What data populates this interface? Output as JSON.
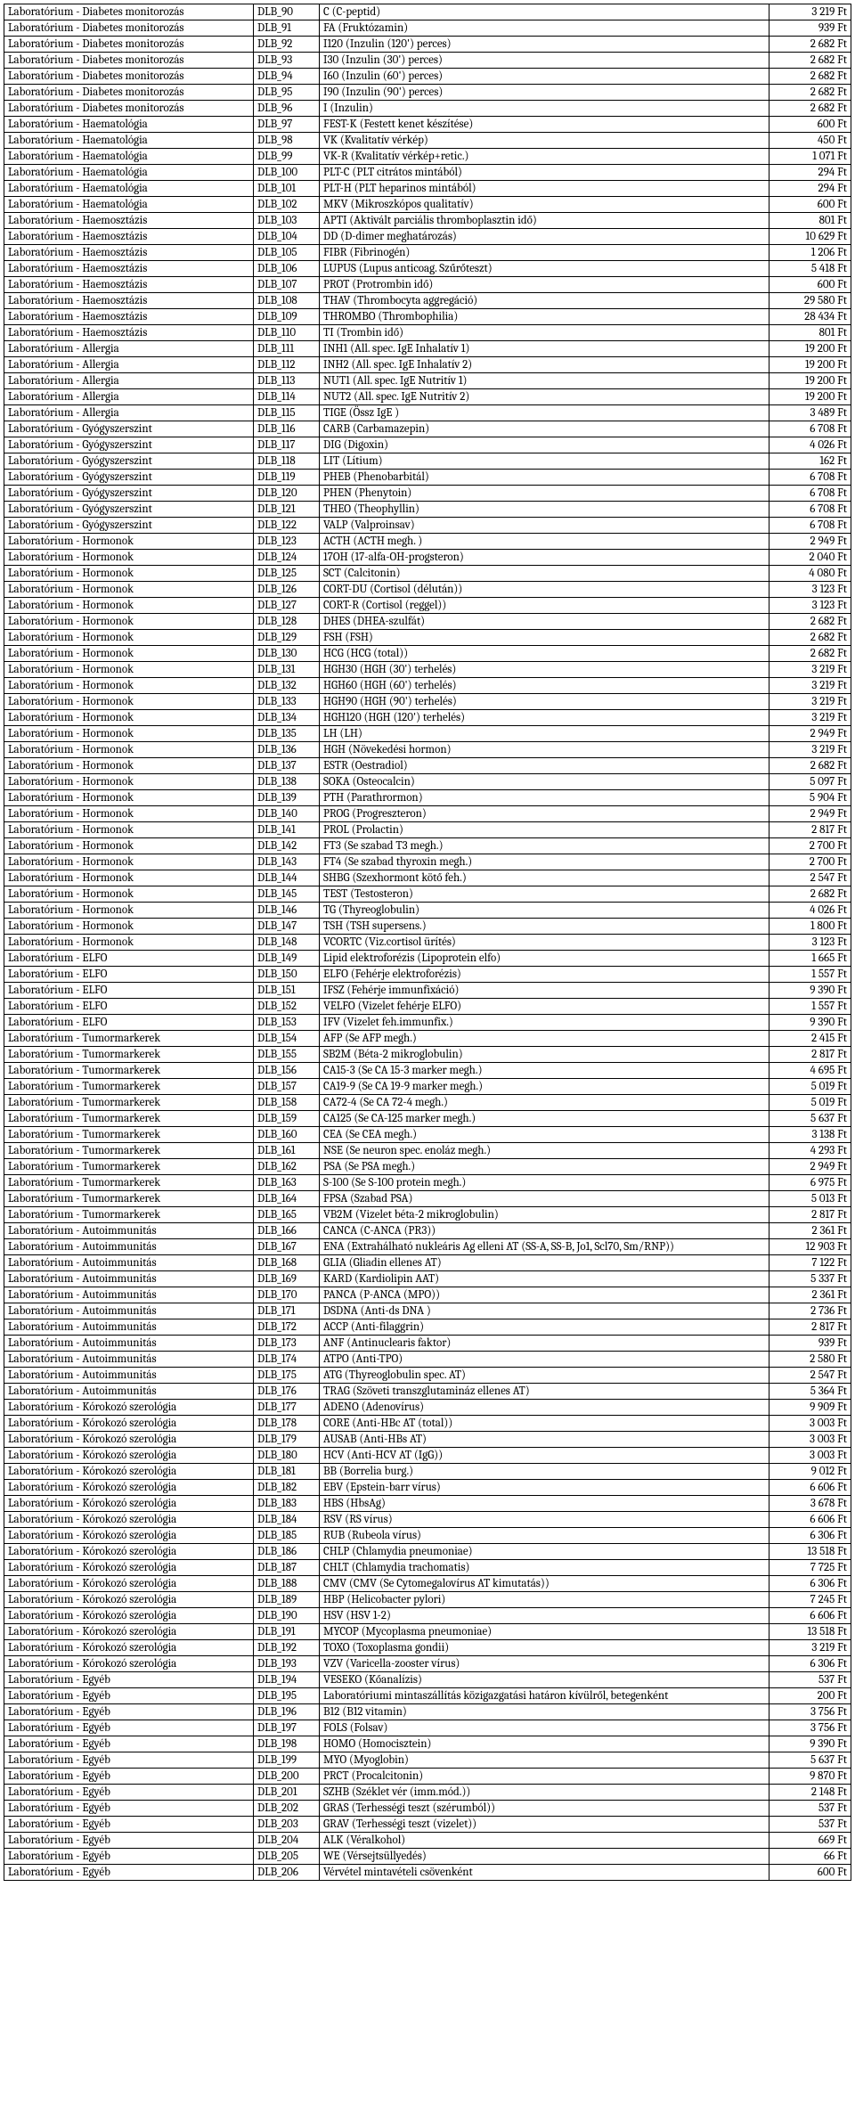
{
  "rows": [
    {
      "cat": "Laboratórium - Diabetes monitorozás",
      "code": "DLB_90",
      "desc": "C (C-peptid)",
      "price": "3 219 Ft"
    },
    {
      "cat": "Laboratórium - Diabetes monitorozás",
      "code": "DLB_91",
      "desc": "FA (Fruktózamin)",
      "price": "939 Ft"
    },
    {
      "cat": "Laboratórium - Diabetes monitorozás",
      "code": "DLB_92",
      "desc": "I120 (Inzulin (120') perces)",
      "price": "2 682 Ft"
    },
    {
      "cat": "Laboratórium - Diabetes monitorozás",
      "code": "DLB_93",
      "desc": "I30 (Inzulin (30') perces)",
      "price": "2 682 Ft"
    },
    {
      "cat": "Laboratórium - Diabetes monitorozás",
      "code": "DLB_94",
      "desc": "I60 (Inzulin (60') perces)",
      "price": "2 682 Ft"
    },
    {
      "cat": "Laboratórium - Diabetes monitorozás",
      "code": "DLB_95",
      "desc": "I90 (Inzulin (90') perces)",
      "price": "2 682 Ft"
    },
    {
      "cat": "Laboratórium - Diabetes monitorozás",
      "code": "DLB_96",
      "desc": "I (Inzulin)",
      "price": "2 682 Ft"
    },
    {
      "cat": "Laboratórium - Haematológia",
      "code": "DLB_97",
      "desc": "FEST-K (Festett kenet készítése)",
      "price": "600 Ft"
    },
    {
      "cat": "Laboratórium - Haematológia",
      "code": "DLB_98",
      "desc": "VK (Kvalitatív vérkép)",
      "price": "450 Ft"
    },
    {
      "cat": "Laboratórium - Haematológia",
      "code": "DLB_99",
      "desc": "VK-R (Kvalitatív vérkép+retic.)",
      "price": "1 071 Ft"
    },
    {
      "cat": "Laboratórium - Haematológia",
      "code": "DLB_100",
      "desc": "PLT-C (PLT citrátos mintából)",
      "price": "294 Ft"
    },
    {
      "cat": "Laboratórium - Haematológia",
      "code": "DLB_101",
      "desc": "PLT-H (PLT heparinos mintából)",
      "price": "294 Ft"
    },
    {
      "cat": "Laboratórium - Haematológia",
      "code": "DLB_102",
      "desc": "MKV (Mikroszkópos qualitatív)",
      "price": "600 Ft"
    },
    {
      "cat": "Laboratórium - Haemosztázis",
      "code": "DLB_103",
      "desc": "APTI (Aktivált parciális thromboplasztin idő)",
      "price": "801 Ft"
    },
    {
      "cat": "Laboratórium - Haemosztázis",
      "code": "DLB_104",
      "desc": "DD (D-dimer meghatározás)",
      "price": "10 629 Ft"
    },
    {
      "cat": "Laboratórium - Haemosztázis",
      "code": "DLB_105",
      "desc": "FIBR (Fibrinogén)",
      "price": "1 206 Ft"
    },
    {
      "cat": "Laboratórium - Haemosztázis",
      "code": "DLB_106",
      "desc": "LUPUS (Lupus anticoag. Szűrőteszt)",
      "price": "5 418 Ft"
    },
    {
      "cat": "Laboratórium - Haemosztázis",
      "code": "DLB_107",
      "desc": "PROT (Protrombin idő)",
      "price": "600 Ft"
    },
    {
      "cat": "Laboratórium - Haemosztázis",
      "code": "DLB_108",
      "desc": "THAV (Thrombocyta aggregáció)",
      "price": "29 580 Ft"
    },
    {
      "cat": "Laboratórium - Haemosztázis",
      "code": "DLB_109",
      "desc": "THROMBO (Thrombophilia)",
      "price": "28 434 Ft"
    },
    {
      "cat": "Laboratórium - Haemosztázis",
      "code": "DLB_110",
      "desc": "TI (Trombin idő)",
      "price": "801 Ft"
    },
    {
      "cat": "Laboratórium - Allergia",
      "code": "DLB_111",
      "desc": "INH1 (All. spec. IgE Inhalatív 1)",
      "price": "19 200 Ft"
    },
    {
      "cat": "Laboratórium - Allergia",
      "code": "DLB_112",
      "desc": "INH2 (All. spec. IgE Inhalatív 2)",
      "price": "19 200 Ft"
    },
    {
      "cat": "Laboratórium - Allergia",
      "code": "DLB_113",
      "desc": "NUT1 (All. spec. IgE Nutritív 1)",
      "price": "19 200 Ft"
    },
    {
      "cat": "Laboratórium - Allergia",
      "code": "DLB_114",
      "desc": "NUT2 (All. spec. IgE Nutritív 2)",
      "price": "19 200 Ft"
    },
    {
      "cat": "Laboratórium - Allergia",
      "code": "DLB_115",
      "desc": "TIGE (Össz IgE )",
      "price": "3 489 Ft"
    },
    {
      "cat": "Laboratórium - Gyógyszerszint",
      "code": "DLB_116",
      "desc": "CARB (Carbamazepin)",
      "price": "6 708 Ft"
    },
    {
      "cat": "Laboratórium - Gyógyszerszint",
      "code": "DLB_117",
      "desc": "DIG (Digoxin)",
      "price": "4 026 Ft"
    },
    {
      "cat": "Laboratórium - Gyógyszerszint",
      "code": "DLB_118",
      "desc": "LIT (Lítium)",
      "price": "162 Ft"
    },
    {
      "cat": "Laboratórium - Gyógyszerszint",
      "code": "DLB_119",
      "desc": "PHEB (Phenobarbitál)",
      "price": "6 708 Ft"
    },
    {
      "cat": "Laboratórium - Gyógyszerszint",
      "code": "DLB_120",
      "desc": "PHEN (Phenytoin)",
      "price": "6 708 Ft"
    },
    {
      "cat": "Laboratórium - Gyógyszerszint",
      "code": "DLB_121",
      "desc": "THEO (Theophyllin)",
      "price": "6 708 Ft"
    },
    {
      "cat": "Laboratórium - Gyógyszerszint",
      "code": "DLB_122",
      "desc": "VALP (Valproinsav)",
      "price": "6 708 Ft"
    },
    {
      "cat": "Laboratórium - Hormonok",
      "code": "DLB_123",
      "desc": "ACTH (ACTH megh. )",
      "price": "2 949 Ft"
    },
    {
      "cat": "Laboratórium - Hormonok",
      "code": "DLB_124",
      "desc": "17OH (17-alfa-OH-progsteron)",
      "price": "2 040 Ft"
    },
    {
      "cat": "Laboratórium - Hormonok",
      "code": "DLB_125",
      "desc": "SCT (Calcitonin)",
      "price": "4 080 Ft"
    },
    {
      "cat": "Laboratórium - Hormonok",
      "code": "DLB_126",
      "desc": "CORT-DU (Cortisol (délután))",
      "price": "3 123 Ft"
    },
    {
      "cat": "Laboratórium - Hormonok",
      "code": "DLB_127",
      "desc": "CORT-R (Cortisol (reggel))",
      "price": "3 123 Ft"
    },
    {
      "cat": "Laboratórium - Hormonok",
      "code": "DLB_128",
      "desc": "DHES (DHEA-szulfát)",
      "price": "2 682 Ft"
    },
    {
      "cat": "Laboratórium - Hormonok",
      "code": "DLB_129",
      "desc": "FSH (FSH)",
      "price": "2 682 Ft"
    },
    {
      "cat": "Laboratórium - Hormonok",
      "code": "DLB_130",
      "desc": "HCG (HCG (total))",
      "price": "2 682 Ft"
    },
    {
      "cat": "Laboratórium - Hormonok",
      "code": "DLB_131",
      "desc": "HGH30 (HGH (30') terhelés)",
      "price": "3 219 Ft"
    },
    {
      "cat": "Laboratórium - Hormonok",
      "code": "DLB_132",
      "desc": "HGH60 (HGH (60') terhelés)",
      "price": "3 219 Ft"
    },
    {
      "cat": "Laboratórium - Hormonok",
      "code": "DLB_133",
      "desc": "HGH90 (HGH (90') terhelés)",
      "price": "3 219 Ft"
    },
    {
      "cat": "Laboratórium - Hormonok",
      "code": "DLB_134",
      "desc": "HGH120 (HGH (120') terhelés)",
      "price": "3 219 Ft"
    },
    {
      "cat": "Laboratórium - Hormonok",
      "code": "DLB_135",
      "desc": "LH (LH)",
      "price": "2 949 Ft"
    },
    {
      "cat": "Laboratórium - Hormonok",
      "code": "DLB_136",
      "desc": "HGH (Növekedési hormon)",
      "price": "3 219 Ft"
    },
    {
      "cat": "Laboratórium - Hormonok",
      "code": "DLB_137",
      "desc": "ESTR (Oestradiol)",
      "price": "2 682 Ft"
    },
    {
      "cat": "Laboratórium - Hormonok",
      "code": "DLB_138",
      "desc": "SOKA (Osteocalcin)",
      "price": "5 097 Ft"
    },
    {
      "cat": "Laboratórium - Hormonok",
      "code": "DLB_139",
      "desc": "PTH (Parathrormon)",
      "price": "5 904 Ft"
    },
    {
      "cat": "Laboratórium - Hormonok",
      "code": "DLB_140",
      "desc": "PROG (Progreszteron)",
      "price": "2 949 Ft"
    },
    {
      "cat": "Laboratórium - Hormonok",
      "code": "DLB_141",
      "desc": "PROL (Prolactin)",
      "price": "2 817 Ft"
    },
    {
      "cat": "Laboratórium - Hormonok",
      "code": "DLB_142",
      "desc": "FT3 (Se szabad T3 megh.)",
      "price": "2 700 Ft"
    },
    {
      "cat": "Laboratórium - Hormonok",
      "code": "DLB_143",
      "desc": "FT4 (Se szabad thyroxin megh.)",
      "price": "2 700 Ft"
    },
    {
      "cat": "Laboratórium - Hormonok",
      "code": "DLB_144",
      "desc": "SHBG (Szexhormont kötő feh.)",
      "price": "2 547 Ft"
    },
    {
      "cat": "Laboratórium - Hormonok",
      "code": "DLB_145",
      "desc": "TEST (Testosteron)",
      "price": "2 682 Ft"
    },
    {
      "cat": "Laboratórium - Hormonok",
      "code": "DLB_146",
      "desc": "TG (Thyreoglobulin)",
      "price": "4 026 Ft"
    },
    {
      "cat": "Laboratórium - Hormonok",
      "code": "DLB_147",
      "desc": "TSH (TSH supersens.)",
      "price": "1 800 Ft"
    },
    {
      "cat": "Laboratórium - Hormonok",
      "code": "DLB_148",
      "desc": "VCORTC (Viz.cortisol ürítés)",
      "price": "3 123 Ft"
    },
    {
      "cat": "Laboratórium - ELFO",
      "code": "DLB_149",
      "desc": "Lipid elektroforézis (Lipoprotein elfo)",
      "price": "1 665 Ft"
    },
    {
      "cat": "Laboratórium - ELFO",
      "code": "DLB_150",
      "desc": "ELFO (Fehérje elektroforézis)",
      "price": "1 557 Ft"
    },
    {
      "cat": "Laboratórium - ELFO",
      "code": "DLB_151",
      "desc": "IFSZ (Fehérje immunfixáció)",
      "price": "9 390 Ft"
    },
    {
      "cat": "Laboratórium - ELFO",
      "code": "DLB_152",
      "desc": "VELFO (Vizelet fehérje ELFO)",
      "price": "1 557 Ft"
    },
    {
      "cat": "Laboratórium - ELFO",
      "code": "DLB_153",
      "desc": "IFV (Vizelet feh.immunfix.)",
      "price": "9 390 Ft"
    },
    {
      "cat": "Laboratórium - Tumormarkerek",
      "code": "DLB_154",
      "desc": "AFP (Se AFP  megh.)",
      "price": "2 415 Ft"
    },
    {
      "cat": "Laboratórium - Tumormarkerek",
      "code": "DLB_155",
      "desc": "SB2M (Béta-2 mikroglobulin)",
      "price": "2 817 Ft"
    },
    {
      "cat": "Laboratórium - Tumormarkerek",
      "code": "DLB_156",
      "desc": "CA15-3 (Se CA 15-3 marker megh.)",
      "price": "4 695 Ft"
    },
    {
      "cat": "Laboratórium - Tumormarkerek",
      "code": "DLB_157",
      "desc": "CA19-9 (Se CA 19-9 marker megh.)",
      "price": "5 019 Ft"
    },
    {
      "cat": "Laboratórium - Tumormarkerek",
      "code": "DLB_158",
      "desc": "CA72-4 (Se CA 72-4 megh.)",
      "price": "5 019 Ft"
    },
    {
      "cat": "Laboratórium - Tumormarkerek",
      "code": "DLB_159",
      "desc": "CA125 (Se CA-125 marker megh.)",
      "price": "5 637 Ft"
    },
    {
      "cat": "Laboratórium - Tumormarkerek",
      "code": "DLB_160",
      "desc": "CEA (Se CEA megh.)",
      "price": "3 138 Ft"
    },
    {
      "cat": "Laboratórium - Tumormarkerek",
      "code": "DLB_161",
      "desc": "NSE (Se neuron spec. enoláz megh.)",
      "price": "4 293 Ft"
    },
    {
      "cat": "Laboratórium - Tumormarkerek",
      "code": "DLB_162",
      "desc": "PSA (Se PSA megh.)",
      "price": "2 949 Ft"
    },
    {
      "cat": "Laboratórium - Tumormarkerek",
      "code": "DLB_163",
      "desc": "S-100 (Se S-100 protein megh.)",
      "price": "6 975 Ft"
    },
    {
      "cat": "Laboratórium - Tumormarkerek",
      "code": "DLB_164",
      "desc": "FPSA (Szabad PSA)",
      "price": "5 013 Ft"
    },
    {
      "cat": "Laboratórium - Tumormarkerek",
      "code": "DLB_165",
      "desc": "VB2M (Vizelet béta-2 mikroglobulin)",
      "price": "2 817 Ft"
    },
    {
      "cat": "Laboratórium - Autoimmunitás",
      "code": "DLB_166",
      "desc": "CANCA (C-ANCA (PR3))",
      "price": "2 361 Ft"
    },
    {
      "cat": "Laboratórium - Autoimmunitás",
      "code": "DLB_167",
      "desc": "ENA (Extrahálható nukleáris Ag elleni AT (SS-A, SS-B, Jo1, Scl70, Sm/RNP))",
      "price": "12 903 Ft"
    },
    {
      "cat": "Laboratórium - Autoimmunitás",
      "code": "DLB_168",
      "desc": "GLIA (Gliadin ellenes AT)",
      "price": "7 122 Ft"
    },
    {
      "cat": "Laboratórium - Autoimmunitás",
      "code": "DLB_169",
      "desc": "KARD (Kardiolipin AAT)",
      "price": "5 337 Ft"
    },
    {
      "cat": "Laboratórium - Autoimmunitás",
      "code": "DLB_170",
      "desc": "PANCA (P-ANCA (MPO))",
      "price": "2 361 Ft"
    },
    {
      "cat": "Laboratórium - Autoimmunitás",
      "code": "DLB_171",
      "desc": "DSDNA (Anti-ds DNA )",
      "price": "2 736 Ft"
    },
    {
      "cat": "Laboratórium - Autoimmunitás",
      "code": "DLB_172",
      "desc": "ACCP (Anti-filaggrin)",
      "price": "2 817 Ft"
    },
    {
      "cat": "Laboratórium - Autoimmunitás",
      "code": "DLB_173",
      "desc": "ANF (Antinuclearis faktor)",
      "price": "939 Ft"
    },
    {
      "cat": "Laboratórium - Autoimmunitás",
      "code": "DLB_174",
      "desc": "ATPO (Anti-TPO)",
      "price": "2 580 Ft"
    },
    {
      "cat": "Laboratórium - Autoimmunitás",
      "code": "DLB_175",
      "desc": "ATG (Thyreoglobulin spec. AT)",
      "price": "2 547 Ft"
    },
    {
      "cat": "Laboratórium - Autoimmunitás",
      "code": "DLB_176",
      "desc": "TRAG (Szöveti transzglutamináz ellenes AT)",
      "price": "5 364 Ft"
    },
    {
      "cat": "Laboratórium - Kórokozó szerológia",
      "code": "DLB_177",
      "desc": "ADENO (Adenovírus)",
      "price": "9 909 Ft"
    },
    {
      "cat": "Laboratórium - Kórokozó szerológia",
      "code": "DLB_178",
      "desc": "CORE (Anti-HBc AT (total))",
      "price": "3 003 Ft"
    },
    {
      "cat": "Laboratórium - Kórokozó szerológia",
      "code": "DLB_179",
      "desc": "AUSAB (Anti-HBs AT)",
      "price": "3 003 Ft"
    },
    {
      "cat": "Laboratórium - Kórokozó szerológia",
      "code": "DLB_180",
      "desc": "HCV (Anti-HCV AT (IgG))",
      "price": "3 003 Ft"
    },
    {
      "cat": "Laboratórium - Kórokozó szerológia",
      "code": "DLB_181",
      "desc": "BB (Borrelia burg.)",
      "price": "9 012 Ft"
    },
    {
      "cat": "Laboratórium - Kórokozó szerológia",
      "code": "DLB_182",
      "desc": "EBV (Epstein-barr vírus)",
      "price": "6 606 Ft"
    },
    {
      "cat": "Laboratórium - Kórokozó szerológia",
      "code": "DLB_183",
      "desc": "HBS (HbsAg)",
      "price": "3 678 Ft"
    },
    {
      "cat": "Laboratórium - Kórokozó szerológia",
      "code": "DLB_184",
      "desc": "RSV (RS vírus)",
      "price": "6 606 Ft"
    },
    {
      "cat": "Laboratórium - Kórokozó szerológia",
      "code": "DLB_185",
      "desc": "RUB (Rubeola vírus)",
      "price": "6 306 Ft"
    },
    {
      "cat": "Laboratórium - Kórokozó szerológia",
      "code": "DLB_186",
      "desc": "CHLP (Chlamydia pneumoniae)",
      "price": "13 518 Ft"
    },
    {
      "cat": "Laboratórium - Kórokozó szerológia",
      "code": "DLB_187",
      "desc": "CHLT (Chlamydia trachomatis)",
      "price": "7 725 Ft"
    },
    {
      "cat": "Laboratórium - Kórokozó szerológia",
      "code": "DLB_188",
      "desc": "CMV (CMV (Se Cytomegalovírus AT kimutatás))",
      "price": "6 306 Ft"
    },
    {
      "cat": "Laboratórium - Kórokozó szerológia",
      "code": "DLB_189",
      "desc": "HBP (Helicobacter pylori)",
      "price": "7 245 Ft"
    },
    {
      "cat": "Laboratórium - Kórokozó szerológia",
      "code": "DLB_190",
      "desc": "HSV (HSV 1-2)",
      "price": "6 606 Ft"
    },
    {
      "cat": "Laboratórium - Kórokozó szerológia",
      "code": "DLB_191",
      "desc": "MYCOP (Mycoplasma pneumoniae)",
      "price": "13 518 Ft"
    },
    {
      "cat": "Laboratórium - Kórokozó szerológia",
      "code": "DLB_192",
      "desc": "TOXO (Toxoplasma gondii)",
      "price": "3 219 Ft"
    },
    {
      "cat": "Laboratórium - Kórokozó szerológia",
      "code": "DLB_193",
      "desc": "VZV (Varicella-zooster vírus)",
      "price": "6 306 Ft"
    },
    {
      "cat": "Laboratórium - Egyéb",
      "code": "DLB_194",
      "desc": "VESEKO (Kőanalízis)",
      "price": "537 Ft"
    },
    {
      "cat": "Laboratórium - Egyéb",
      "code": "DLB_195",
      "desc": "Laboratóriumi mintaszállítás közigazgatási határon kívülről, betegenként",
      "price": "200 Ft"
    },
    {
      "cat": "Laboratórium - Egyéb",
      "code": "DLB_196",
      "desc": "B12 (B12 vitamin)",
      "price": "3 756 Ft"
    },
    {
      "cat": "Laboratórium - Egyéb",
      "code": "DLB_197",
      "desc": "FOLS (Folsav)",
      "price": "3 756 Ft"
    },
    {
      "cat": "Laboratórium - Egyéb",
      "code": "DLB_198",
      "desc": "HOMO (Homocisztein)",
      "price": "9 390 Ft"
    },
    {
      "cat": "Laboratórium - Egyéb",
      "code": "DLB_199",
      "desc": "MYO (Myoglobin)",
      "price": "5 637 Ft"
    },
    {
      "cat": "Laboratórium - Egyéb",
      "code": "DLB_200",
      "desc": "PRCT (Procalcitonin)",
      "price": "9 870 Ft"
    },
    {
      "cat": "Laboratórium - Egyéb",
      "code": "DLB_201",
      "desc": "SZHB (Széklet vér (imm.mód.))",
      "price": "2 148 Ft"
    },
    {
      "cat": "Laboratórium - Egyéb",
      "code": "DLB_202",
      "desc": "GRAS (Terhességi teszt (szérumból))",
      "price": "537 Ft"
    },
    {
      "cat": "Laboratórium - Egyéb",
      "code": "DLB_203",
      "desc": "GRAV (Terhességi teszt (vizelet))",
      "price": "537 Ft"
    },
    {
      "cat": "Laboratórium - Egyéb",
      "code": "DLB_204",
      "desc": "ALK (Véralkohol)",
      "price": "669 Ft"
    },
    {
      "cat": "Laboratórium - Egyéb",
      "code": "DLB_205",
      "desc": "WE (Vérsejtsüllyedés)",
      "price": "66 Ft"
    },
    {
      "cat": "Laboratórium - Egyéb",
      "code": "DLB_206",
      "desc": "Vérvétel mintavételi csövenként",
      "price": "600 Ft"
    }
  ]
}
